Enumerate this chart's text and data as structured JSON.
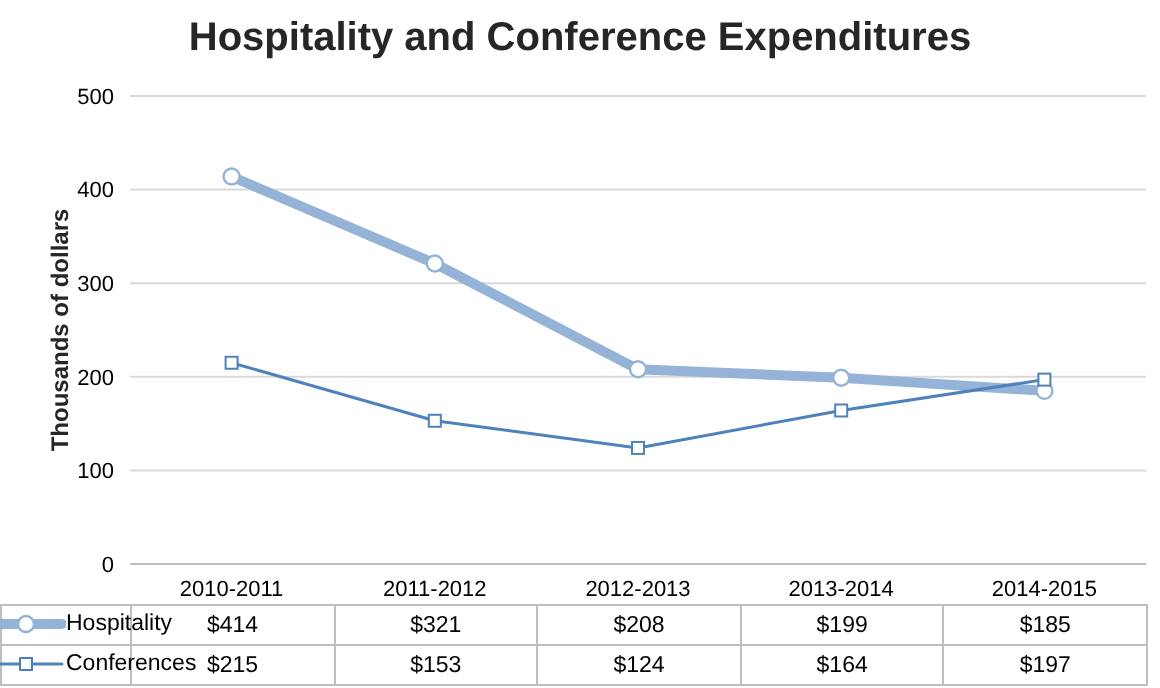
{
  "chart_data": {
    "type": "line",
    "title": "Hospitality and Conference Expenditures",
    "ylabel": "Thousands of dollars",
    "categories": [
      "2010-2011",
      "2011-2012",
      "2012-2013",
      "2013-2014",
      "2014-2015"
    ],
    "series": [
      {
        "name": "Hospitality",
        "color": "#95b3d7",
        "values": [
          414,
          321,
          208,
          199,
          185
        ],
        "marker": "circle",
        "value_labels": [
          "$414",
          "$321",
          "$208",
          "$199",
          "$185"
        ]
      },
      {
        "name": "Conferences",
        "color": "#4f81bd",
        "values": [
          215,
          153,
          124,
          164,
          197
        ],
        "marker": "square",
        "value_labels": [
          "$215",
          "$153",
          "$124",
          "$164",
          "$197"
        ]
      }
    ],
    "ylim": [
      0,
      500
    ],
    "yticks": [
      0,
      100,
      200,
      300,
      400,
      500
    ],
    "grid": "y",
    "legend": "bottom"
  }
}
